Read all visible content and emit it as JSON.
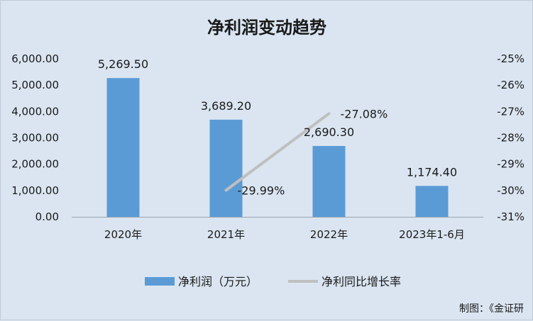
{
  "chart_data": {
    "type": "bar",
    "title": "净利润变动趋势",
    "categories": [
      "2020年",
      "2021年",
      "2022年",
      "2023年1-6月"
    ],
    "series": [
      {
        "name": "净利润（万元）",
        "type": "bar",
        "axis": "left",
        "values": [
          5269.5,
          3689.2,
          2690.3,
          1174.4
        ],
        "labels": [
          "5,269.50",
          "3,689.20",
          "2,690.30",
          "1,174.40"
        ],
        "color": "#5b9bd5"
      },
      {
        "name": "净利同比增长率",
        "type": "line",
        "axis": "right",
        "values": [
          null,
          -29.99,
          -27.08,
          null
        ],
        "labels": [
          "",
          "-29.99%",
          "-27.08%",
          ""
        ],
        "color": "#bfbfbf"
      }
    ],
    "y_left": {
      "ylim": [
        0,
        6000
      ],
      "ticks": [
        0,
        1000,
        2000,
        3000,
        4000,
        5000,
        6000
      ],
      "tick_labels": [
        "0.00",
        "1,000.00",
        "2,000.00",
        "3,000.00",
        "4,000.00",
        "5,000.00",
        "6,000.00"
      ]
    },
    "y_right": {
      "ylim": [
        -31,
        -25
      ],
      "ticks": [
        -31,
        -30,
        -29,
        -28,
        -27,
        -26,
        -25
      ],
      "tick_labels": [
        "-31%",
        "-30%",
        "-29%",
        "-28%",
        "-27%",
        "-26%",
        "-25%"
      ]
    },
    "grid": false,
    "legend_position": "bottom"
  },
  "source_note": "制图：《金证研"
}
